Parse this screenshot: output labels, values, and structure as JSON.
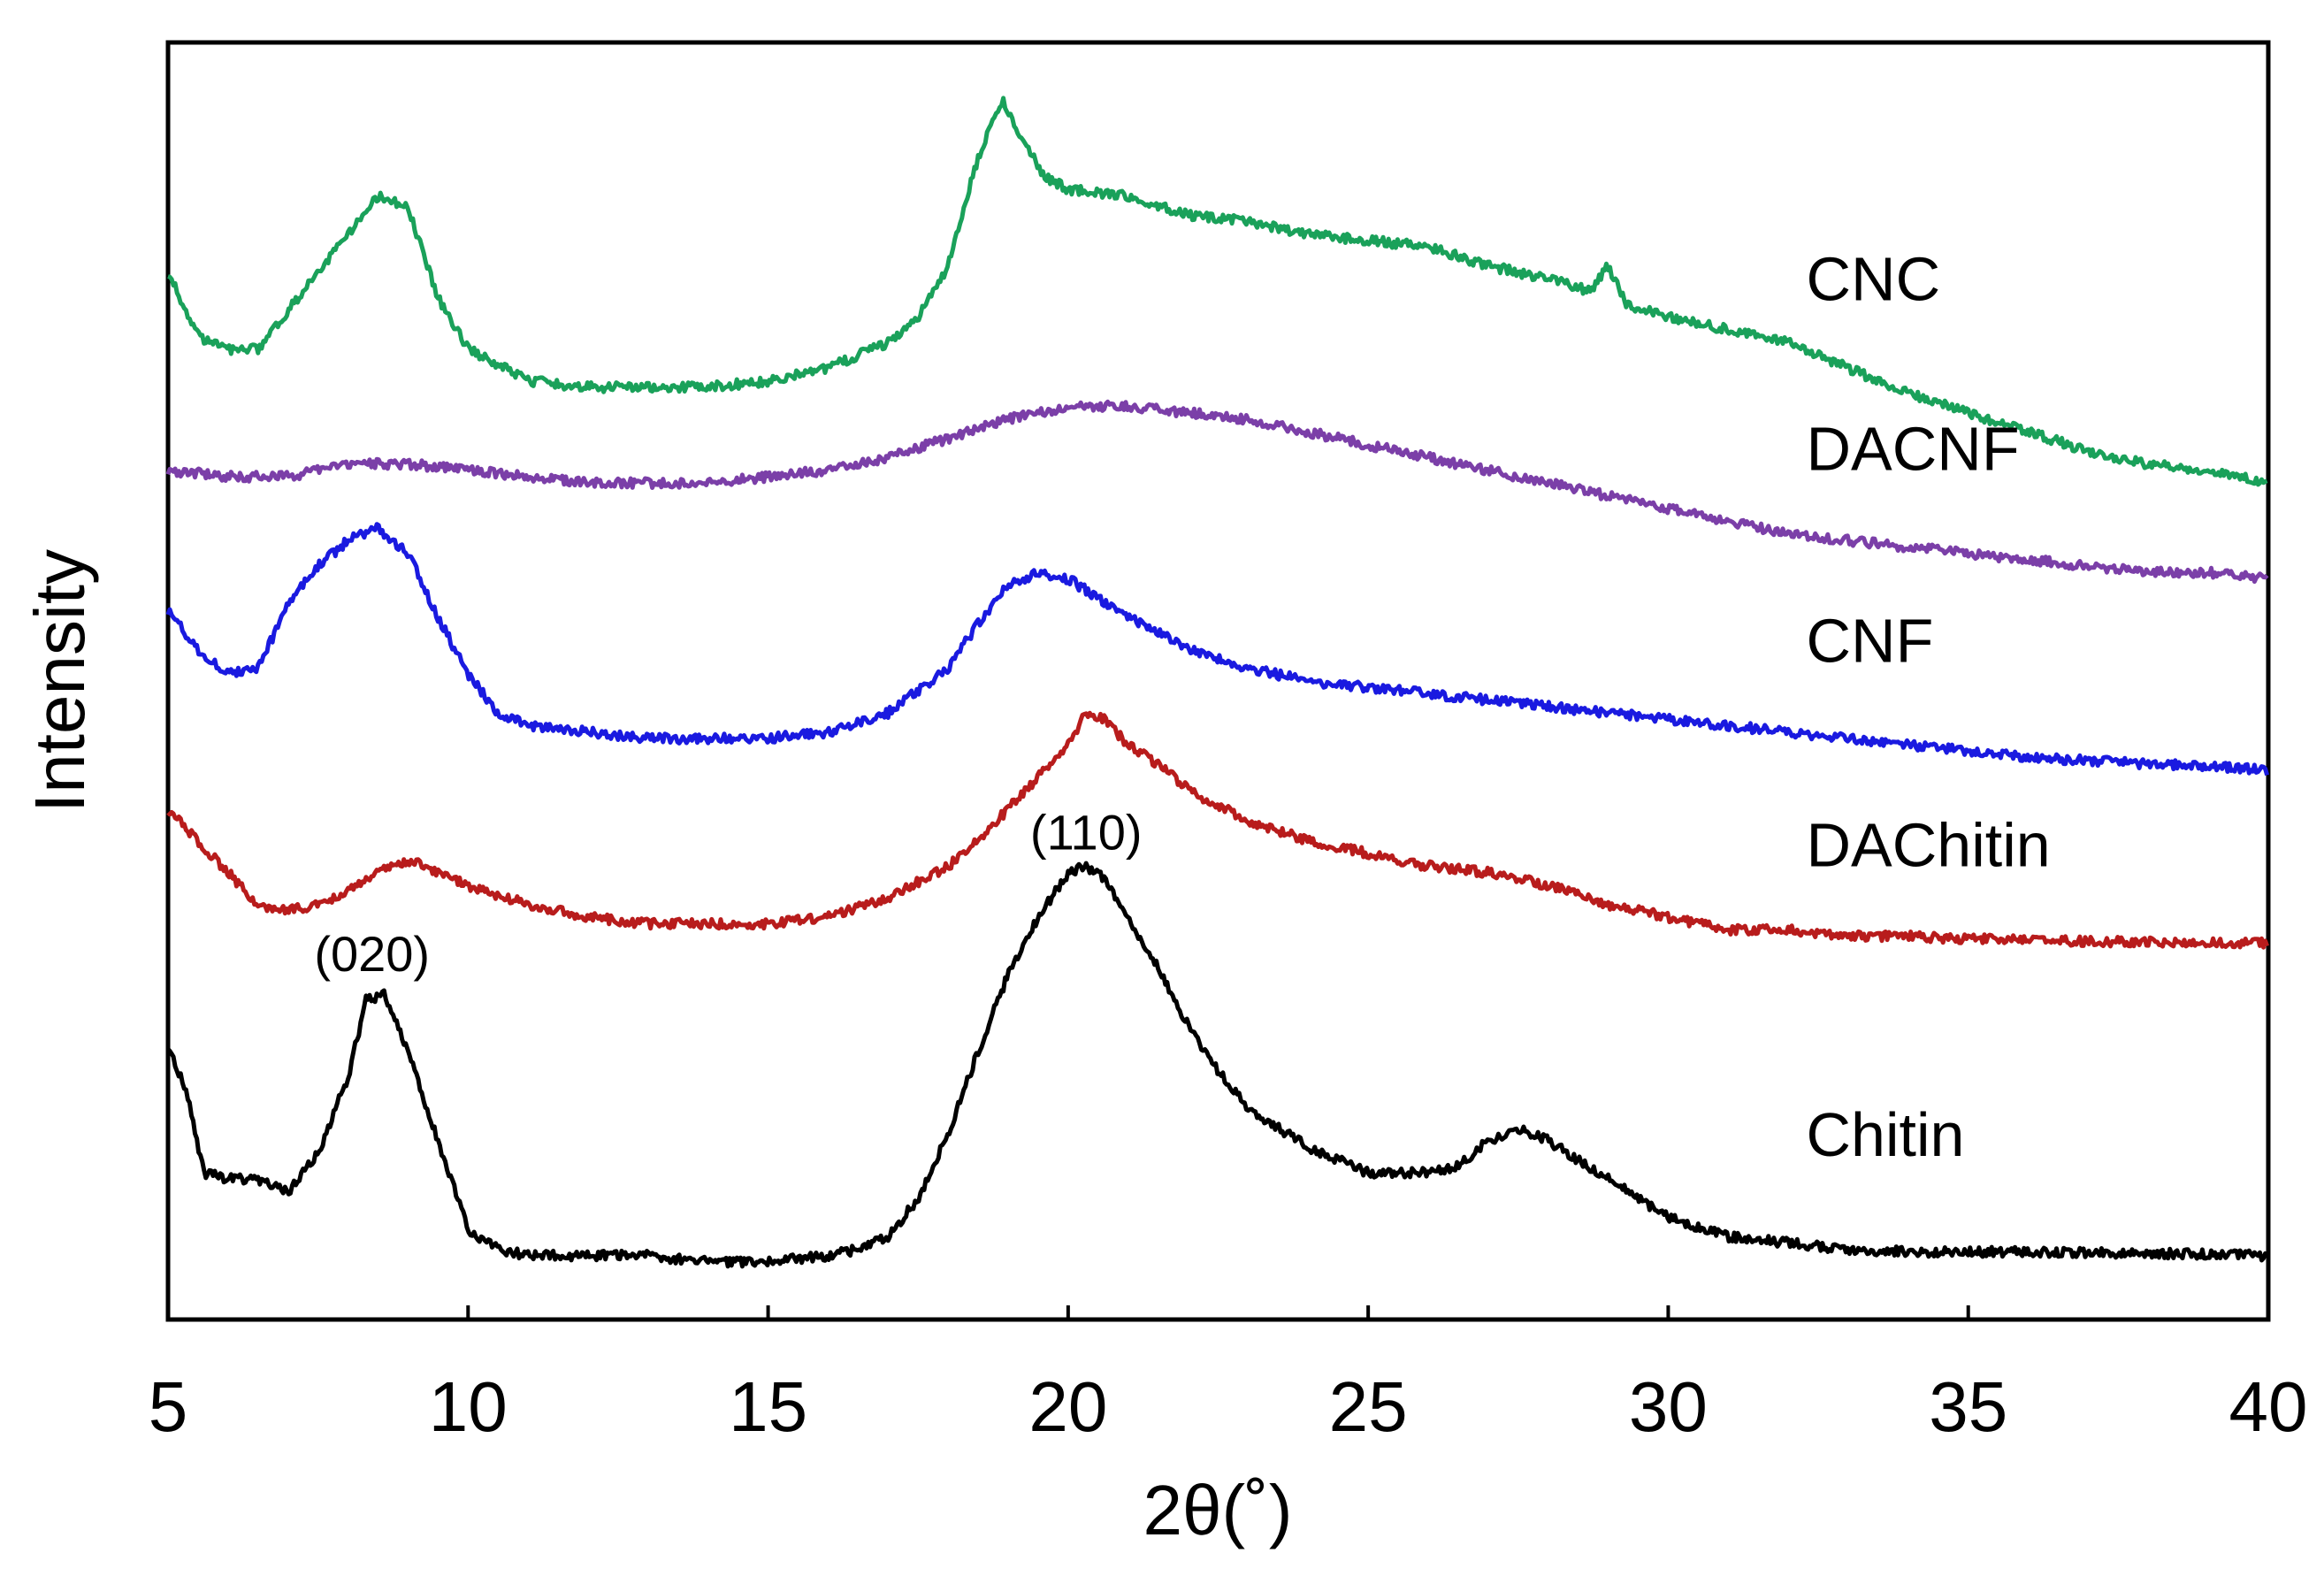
{
  "chart_data": {
    "type": "line",
    "title": "",
    "xlabel": "2θ(˚)",
    "ylabel": "Intensity",
    "xlim": [
      5,
      40
    ],
    "ylim": [
      0,
      100
    ],
    "xticks": [
      5,
      10,
      15,
      20,
      25,
      30,
      35,
      40
    ],
    "xtick_labels": [
      "5",
      "10",
      "15",
      "20",
      "25",
      "30",
      "35",
      "40"
    ],
    "y_ticks_shown": false,
    "grid": false,
    "legend": "none (series labelled inline at right)",
    "series": [
      {
        "name": "CNC",
        "color": "#1aa15a",
        "x": [
          5,
          5.5,
          6,
          6.5,
          7,
          7.5,
          8,
          8.5,
          9,
          9.5,
          10,
          11,
          12,
          13,
          14,
          15,
          16,
          17,
          17.5,
          18,
          18.5,
          18.9,
          19.3,
          19.6,
          20,
          21,
          22,
          23,
          24,
          25,
          26,
          27,
          28,
          28.7,
          29,
          29.3,
          30,
          31,
          32,
          33,
          34,
          35,
          36,
          37,
          38,
          39,
          40
        ],
        "y": [
          82,
          77,
          76,
          76,
          79,
          82,
          85,
          88,
          87,
          80,
          76,
          73.5,
          73,
          73,
          73,
          73.5,
          74.5,
          76.5,
          78.5,
          82.5,
          91,
          95.5,
          92,
          89.5,
          88.5,
          88,
          86.5,
          86,
          85,
          84.5,
          84,
          82.5,
          81.5,
          80.5,
          82.5,
          79.5,
          78.5,
          77.5,
          76.5,
          74.5,
          72.5,
          71,
          69.5,
          68,
          67,
          66.5,
          65.5
        ]
      },
      {
        "name": "DACNF",
        "color": "#7b3fa8",
        "x": [
          5,
          6,
          7,
          8,
          9,
          10,
          11,
          12,
          13,
          14,
          15,
          16,
          17,
          18,
          19,
          20,
          21,
          22,
          23,
          24,
          25,
          26,
          27,
          28,
          29,
          30,
          31,
          32,
          33,
          34,
          35,
          36,
          37,
          38,
          39,
          40
        ],
        "y": [
          66.5,
          66,
          66,
          67,
          67,
          66.5,
          66,
          65.5,
          65.5,
          65.5,
          66,
          66.5,
          67.5,
          69,
          70.5,
          71.5,
          71.5,
          71,
          70.5,
          69.5,
          68.5,
          67.5,
          66.5,
          65.5,
          64.5,
          63.5,
          62.5,
          61.5,
          61,
          60.5,
          60,
          59.5,
          59,
          58.5,
          58.5,
          58
        ]
      },
      {
        "name": "CNF",
        "color": "#1a1ae0",
        "x": [
          5,
          5.5,
          6,
          6.5,
          7,
          7.5,
          8,
          8.5,
          9,
          9.5,
          10,
          10.5,
          11,
          12,
          13,
          14,
          15,
          16,
          17,
          18,
          18.5,
          19,
          19.5,
          20,
          20.5,
          21,
          22,
          23,
          24,
          25,
          26,
          27,
          28,
          29,
          30,
          31,
          32,
          33,
          34,
          35,
          36,
          37,
          38,
          39,
          40
        ],
        "y": [
          55.5,
          52.5,
          50.5,
          51,
          56,
          59,
          61,
          62,
          60,
          55,
          50.5,
          47.5,
          46.5,
          46,
          45.5,
          45.5,
          45.5,
          46,
          47.5,
          51,
          54.5,
          57.5,
          58.5,
          58,
          56.5,
          55,
          52.5,
          51,
          50,
          49.5,
          49,
          48.5,
          48,
          47.5,
          47,
          46.5,
          46,
          45.5,
          45,
          44.5,
          44,
          43.8,
          43.5,
          43.3,
          43
        ]
      },
      {
        "name": "DAChitin",
        "color": "#b81c1c",
        "x": [
          5,
          5.5,
          6,
          6.5,
          7,
          7.5,
          8,
          8.5,
          9,
          9.5,
          10,
          11,
          12,
          13,
          14,
          15,
          16,
          17,
          18,
          18.5,
          19,
          19.5,
          20,
          20.3,
          20.6,
          21,
          21.5,
          22,
          23,
          24,
          25,
          26,
          27,
          28,
          29,
          30,
          31,
          32,
          33,
          34,
          35,
          36,
          37,
          38,
          39,
          40
        ],
        "y": [
          40,
          37.5,
          35,
          32.5,
          32,
          32.5,
          33.5,
          35,
          36,
          35,
          34,
          32.5,
          31.5,
          31,
          31,
          31,
          31.5,
          33,
          35.5,
          37.5,
          40,
          42.5,
          45,
          47.5,
          47,
          45,
          43.5,
          41.5,
          39,
          37.5,
          36.5,
          35.5,
          35,
          34,
          32.5,
          31.5,
          30.5,
          30.5,
          30,
          30,
          29.8,
          29.8,
          29.6,
          29.6,
          29.5,
          29.5
        ]
      },
      {
        "name": "Chitin",
        "color": "#000000",
        "x": [
          5,
          5.3,
          5.6,
          6,
          6.5,
          7,
          7.5,
          8,
          8.3,
          8.6,
          9,
          9.5,
          10,
          10.5,
          11,
          12,
          13,
          14,
          15,
          16,
          16.5,
          17,
          17.5,
          18,
          18.5,
          19,
          19.5,
          20,
          20.3,
          20.6,
          21,
          21.5,
          22,
          22.5,
          23,
          24,
          25,
          26,
          26.5,
          27,
          27.5,
          28,
          28.5,
          29,
          29.5,
          30,
          31,
          32,
          33,
          34,
          35,
          36,
          37,
          38,
          39,
          40
        ],
        "y": [
          21.5,
          18,
          11.5,
          11,
          11,
          10,
          13,
          19,
          25,
          25.5,
          21,
          14,
          7,
          5.5,
          5,
          5,
          5,
          4.5,
          4.5,
          5,
          5.5,
          6.5,
          9.5,
          14.5,
          21,
          27,
          31.5,
          35,
          35.5,
          34.5,
          31.5,
          27.5,
          23,
          19.5,
          16.5,
          13.5,
          11.5,
          11.5,
          12,
          14,
          15,
          14,
          12.5,
          11,
          9.5,
          8,
          6.5,
          6,
          5.5,
          5.3,
          5.3,
          5.3,
          5.2,
          5.2,
          5.1,
          5
        ]
      }
    ],
    "series_labels": [
      {
        "text": "CNC",
        "x": 32.3,
        "y": 79.8
      },
      {
        "text": "DACNF",
        "x": 32.3,
        "y": 66.5
      },
      {
        "text": "CNF",
        "x": 32.3,
        "y": 51.5
      },
      {
        "text": "DAChitin",
        "x": 32.3,
        "y": 35.5
      },
      {
        "text": "Chitin",
        "x": 32.3,
        "y": 12.8
      }
    ],
    "annotations": [
      {
        "text": "(020)",
        "x": 8.4,
        "y": 27.3
      },
      {
        "text": "(110)",
        "x": 20.3,
        "y": 36.8
      }
    ]
  }
}
